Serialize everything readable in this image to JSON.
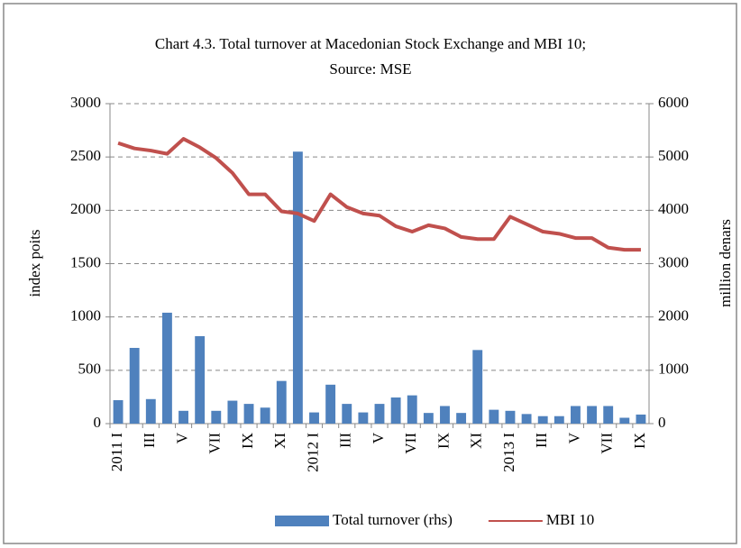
{
  "chart_data": {
    "type": "bar_line",
    "title": "Chart 4.3. Total turnover at Macedonian Stock Exchange and MBI 10;",
    "subtitle": "Source: MSE",
    "y_label": "index poits",
    "y2_label": "million denars",
    "categories": [
      "2011 I",
      null,
      "III",
      null,
      "V",
      null,
      "VII",
      null,
      "IX",
      null,
      "XI",
      null,
      "2012 I",
      null,
      "III",
      null,
      "V",
      null,
      "VII",
      null,
      "IX",
      null,
      "XI",
      null,
      "2013 I",
      null,
      "III",
      null,
      "V",
      null,
      "VII",
      null,
      "IX"
    ],
    "series": [
      {
        "name": "Total turnover (rhs)",
        "type": "bar",
        "axis": "y2",
        "color": "#4f81bd",
        "values": [
          440,
          1420,
          460,
          2080,
          240,
          1640,
          240,
          430,
          370,
          300,
          800,
          5100,
          210,
          730,
          370,
          210,
          370,
          490,
          530,
          200,
          330,
          200,
          1380,
          260,
          240,
          180,
          140,
          140,
          330,
          330,
          330,
          110,
          170
        ]
      },
      {
        "name": "MBI 10",
        "type": "line",
        "color": "#c0504d",
        "values": [
          2630,
          2580,
          2560,
          2530,
          2670,
          2590,
          2490,
          2350,
          2150,
          2150,
          1990,
          1970,
          1900,
          2150,
          2030,
          1970,
          1950,
          1850,
          1800,
          1860,
          1830,
          1750,
          1730,
          1730,
          1940,
          1870,
          1800,
          1780,
          1740,
          1740,
          1650,
          1630,
          1630
        ]
      }
    ],
    "ylim": [
      0,
      3000
    ],
    "yticks": [
      0,
      500,
      1000,
      1500,
      2000,
      2500,
      3000
    ],
    "y2lim": [
      0,
      6000
    ],
    "y2ticks": [
      0,
      1000,
      2000,
      3000,
      4000,
      5000,
      6000
    ],
    "grid": true,
    "legend": "bottom"
  }
}
